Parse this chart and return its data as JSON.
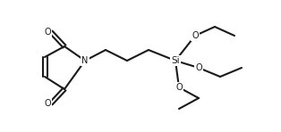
{
  "bg_color": "#ffffff",
  "line_color": "#1a1a1a",
  "line_width": 1.5,
  "font_size": 7,
  "atom_labels": {
    "N": "N",
    "O_top_left": "O",
    "O_bot_left": "O",
    "Si": "Si",
    "O_top_right": "O",
    "O_mid_right": "O",
    "O_bot_right": "O"
  }
}
